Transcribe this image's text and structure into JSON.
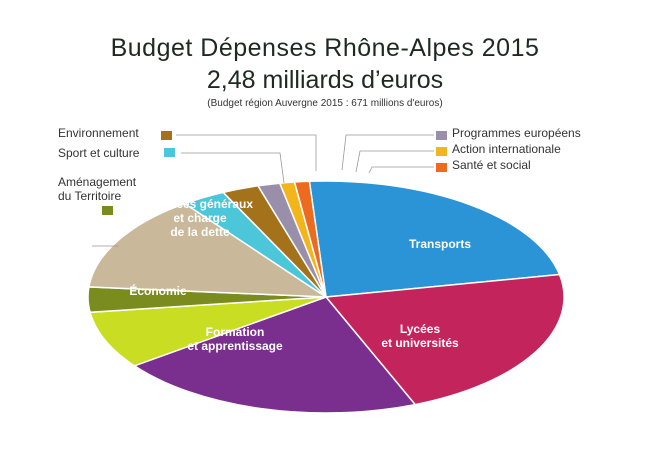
{
  "chart_data": {
    "type": "pie",
    "title": "Budget Dépenses Rhône-Alpes 2015",
    "subtitle": "2,48 milliards d’euros",
    "note": "(Budget région Auvergne 2015 : 671 millions d'euros)",
    "slices": [
      {
        "label": "Transports",
        "value": 23.0,
        "color": "#2a94d6",
        "label_pos": "inside"
      },
      {
        "label": "Lycées\net universités",
        "value": 22.0,
        "color": "#c4245c",
        "label_pos": "inside"
      },
      {
        "label": "Formation\net apprentissage",
        "value": 21.0,
        "color": "#7a2f8e",
        "label_pos": "inside"
      },
      {
        "label": "Économie",
        "value": 8.0,
        "color": "#c9dd22",
        "label_pos": "inside"
      },
      {
        "label": "Aménagement\ndu Territoire",
        "value": 3.5,
        "color": "#7b8c1e",
        "label_pos": "outside"
      },
      {
        "label": "Services généraux\net charge\nde la dette",
        "value": 13.5,
        "color": "#c9b89a",
        "label_pos": "inside"
      },
      {
        "label": "Sport et culture",
        "value": 3.0,
        "color": "#4cc7d9",
        "label_pos": "outside"
      },
      {
        "label": "Environnement",
        "value": 2.5,
        "color": "#a5721c",
        "label_pos": "outside"
      },
      {
        "label": "Programmes européens",
        "value": 1.5,
        "color": "#9a8faa",
        "label_pos": "outside"
      },
      {
        "label": "Action internationale",
        "value": 1.0,
        "color": "#f2b51b",
        "label_pos": "outside"
      },
      {
        "label": "Santé et social",
        "value": 1.0,
        "color": "#ec6b1e",
        "label_pos": "outside"
      }
    ]
  }
}
